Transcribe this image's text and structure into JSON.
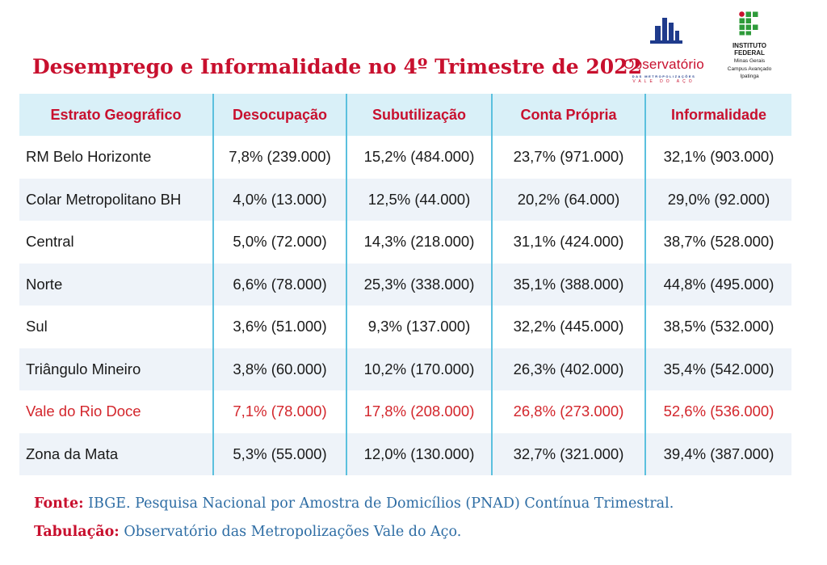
{
  "title": "Desemprego e Informalidade no 4º Trimestre de 2022",
  "logos": {
    "observatorio": {
      "name": "Observatório",
      "line1": "DAS METROPOLIZAÇÕES",
      "line2": "VALE DO AÇO"
    },
    "instituto": {
      "line1": "INSTITUTO",
      "line2": "FEDERAL",
      "line3": "Minas Gerais",
      "line4": "Campus Avançado",
      "line5": "Ipatinga"
    }
  },
  "table": {
    "headers": [
      "Estrato Geográfico",
      "Desocupação",
      "Subutilização",
      "Conta Própria",
      "Informalidade"
    ],
    "rows": [
      [
        "RM Belo Horizonte",
        "7,8% (239.000)",
        "15,2% (484.000)",
        "23,7% (971.000)",
        "32,1% (903.000)"
      ],
      [
        "Colar Metropolitano BH",
        "4,0% (13.000)",
        "12,5% (44.000)",
        "20,2% (64.000)",
        "29,0% (92.000)"
      ],
      [
        "Central",
        "5,0% (72.000)",
        "14,3% (218.000)",
        "31,1% (424.000)",
        "38,7% (528.000)"
      ],
      [
        "Norte",
        "6,6% (78.000)",
        "25,3% (338.000)",
        "35,1% (388.000)",
        "44,8% (495.000)"
      ],
      [
        "Sul",
        "3,6% (51.000)",
        "9,3% (137.000)",
        "32,2% (445.000)",
        "38,5% (532.000)"
      ],
      [
        "Triângulo Mineiro",
        "3,8% (60.000)",
        "10,2% (170.000)",
        "26,3% (402.000)",
        "35,4% (542.000)"
      ],
      [
        "Vale do Rio Doce",
        "7,1% (78.000)",
        "17,8% (208.000)",
        "26,8% (273.000)",
        "52,6% (536.000)"
      ],
      [
        "Zona da Mata",
        "5,3% (55.000)",
        "12,0% (130.000)",
        "32,7% (321.000)",
        "39,4% (387.000)"
      ]
    ]
  },
  "footer": {
    "source_label": "Fonte:",
    "source_text": "IBGE. Pesquisa Nacional por Amostra de Domicílios (PNAD) Contínua Trimestral.",
    "tab_label": "Tabulação:",
    "tab_text": "Observatório das Metropolizações Vale do Aço."
  },
  "colors": {
    "title": "#c8102e",
    "header_bg": "#d9f0f8",
    "alt_row_bg": "#eef3f9",
    "highlight_row": "#d3262c",
    "divider": "#5bc0de",
    "footer_text": "#2e6da4"
  }
}
